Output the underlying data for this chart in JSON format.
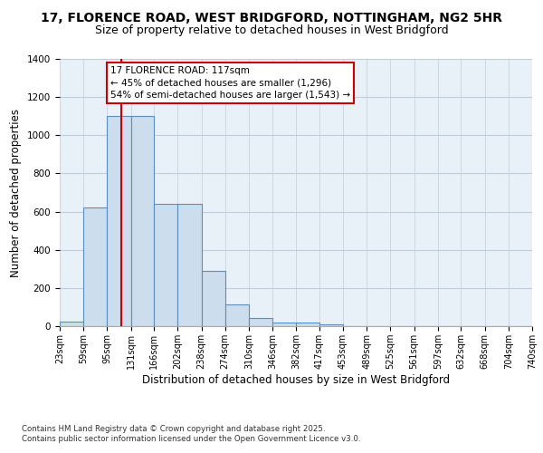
{
  "title_line1": "17, FLORENCE ROAD, WEST BRIDGFORD, NOTTINGHAM, NG2 5HR",
  "title_line2": "Size of property relative to detached houses in West Bridgford",
  "xlabel": "Distribution of detached houses by size in West Bridgford",
  "ylabel": "Number of detached properties",
  "bin_edges": [
    23,
    59,
    95,
    131,
    166,
    202,
    238,
    274,
    310,
    346,
    382,
    417,
    453,
    489,
    525,
    561,
    597,
    632,
    668,
    704,
    740
  ],
  "bar_heights": [
    25,
    620,
    1100,
    1100,
    640,
    640,
    290,
    115,
    45,
    20,
    20,
    10,
    0,
    0,
    0,
    0,
    0,
    0,
    0,
    0
  ],
  "bar_color": "#ccdded",
  "bar_edge_color": "#5a8fc0",
  "grid_color": "#c0cedc",
  "bg_color": "#e8f0f8",
  "vline_x": 117,
  "vline_color": "#cc0000",
  "annotation_title": "17 FLORENCE ROAD: 117sqm",
  "annotation_line2": "← 45% of detached houses are smaller (1,296)",
  "annotation_line3": "54% of semi-detached houses are larger (1,543) →",
  "annotation_box_color": "#cc0000",
  "ylim": [
    0,
    1400
  ],
  "yticks": [
    0,
    200,
    400,
    600,
    800,
    1000,
    1200,
    1400
  ],
  "footnote1": "Contains HM Land Registry data © Crown copyright and database right 2025.",
  "footnote2": "Contains public sector information licensed under the Open Government Licence v3.0.",
  "title_fontsize": 10,
  "subtitle_fontsize": 9,
  "tick_label_fontsize": 7,
  "axis_label_fontsize": 8.5,
  "annotation_fontsize": 7.5
}
